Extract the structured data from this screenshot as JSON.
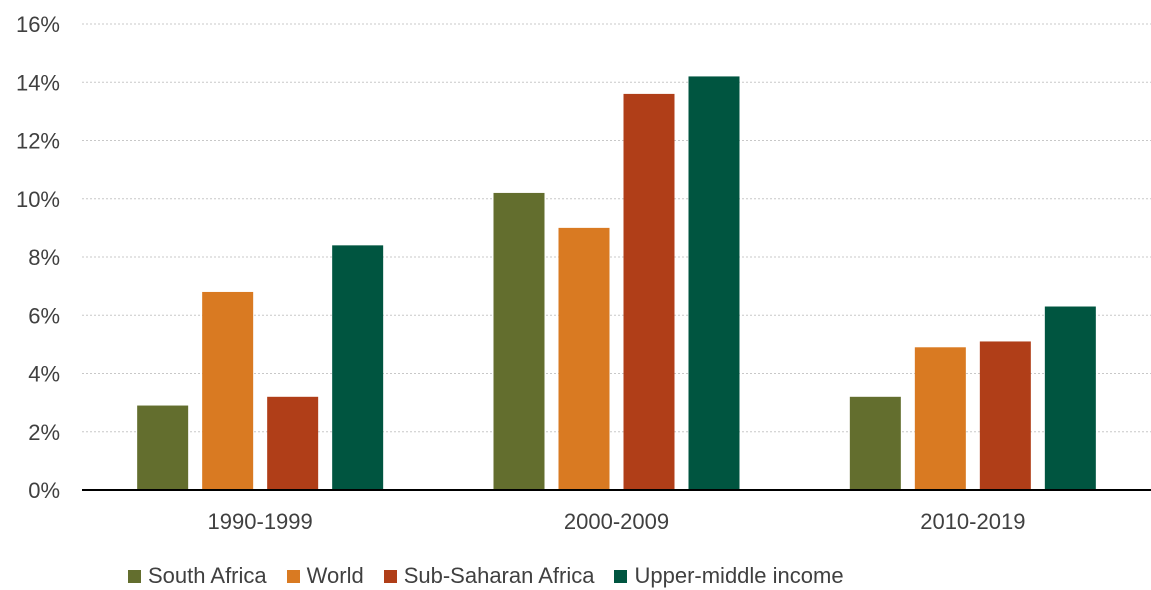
{
  "chart_data": {
    "type": "bar",
    "title": "",
    "xlabel": "",
    "ylabel": "",
    "categories": [
      "1990-1999",
      "2000-2009",
      "2010-2019"
    ],
    "series": [
      {
        "name": "South Africa",
        "color": "#636e2e",
        "values": [
          2.9,
          10.2,
          3.2
        ]
      },
      {
        "name": "World",
        "color": "#d97a22",
        "values": [
          6.8,
          9.0,
          4.9
        ]
      },
      {
        "name": "Sub-Saharan Africa",
        "color": "#b03e18",
        "values": [
          3.2,
          13.6,
          5.1
        ]
      },
      {
        "name": "Upper-middle income",
        "color": "#005540",
        "values": [
          8.4,
          14.2,
          6.3
        ]
      }
    ],
    "ylim": [
      0,
      16
    ],
    "yticks": [
      "0%",
      "2%",
      "4%",
      "6%",
      "8%",
      "10%",
      "12%",
      "14%",
      "16%"
    ],
    "grid": true,
    "legend_position": "bottom"
  }
}
